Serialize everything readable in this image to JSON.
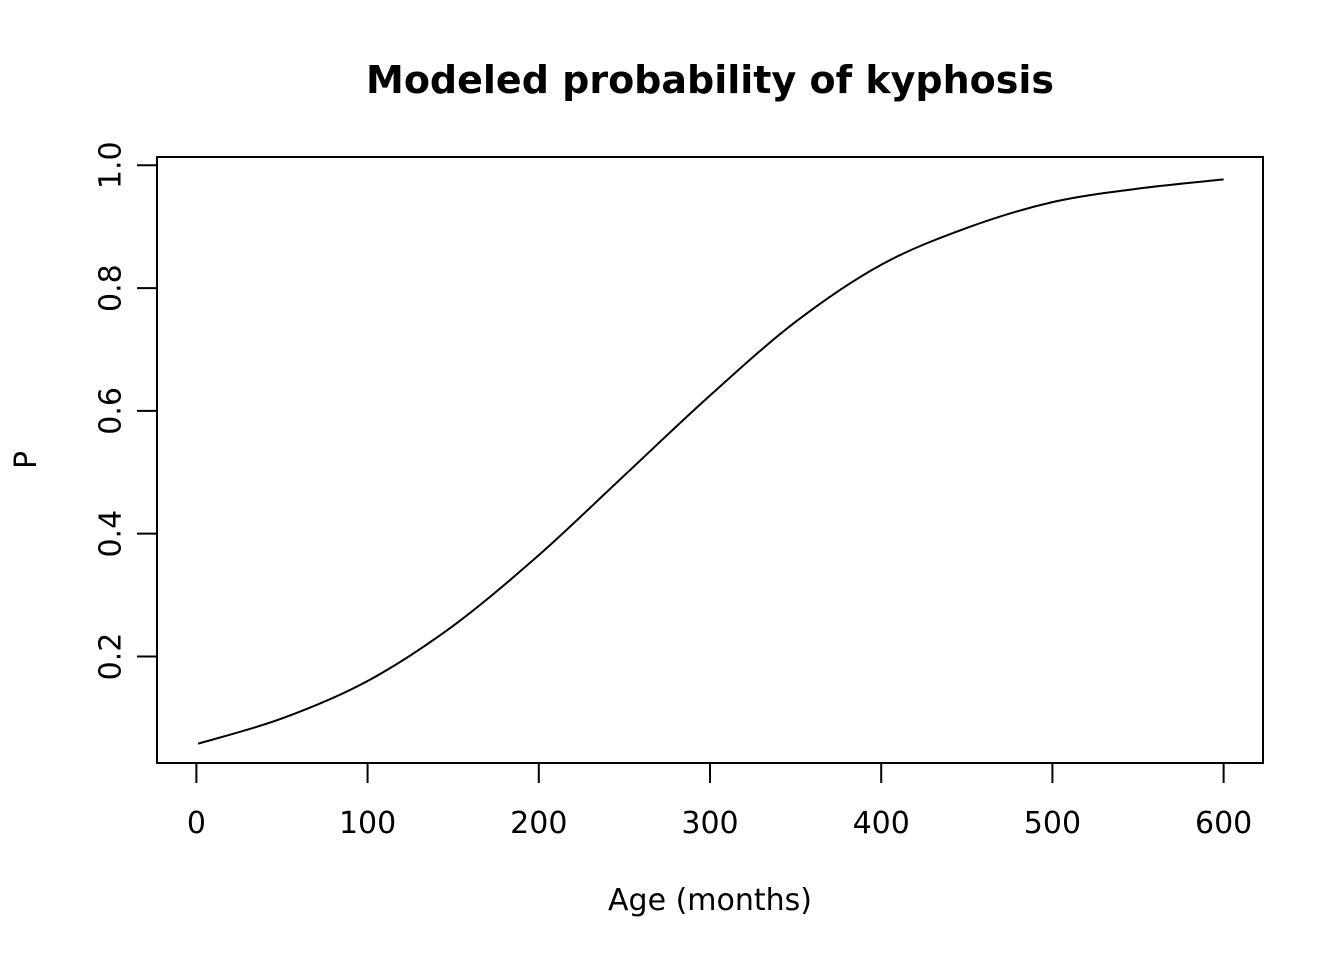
{
  "chart_data": {
    "type": "line",
    "title": "Modeled probability of kyphosis",
    "xlabel": "Age (months)",
    "ylabel": "P",
    "xlim": [
      -23,
      623
    ],
    "ylim": [
      0.0265,
      1.0135
    ],
    "x_ticks": [
      0,
      100,
      200,
      300,
      400,
      500,
      600
    ],
    "x_tick_labels": [
      "0",
      "100",
      "200",
      "300",
      "400",
      "500",
      "600"
    ],
    "y_ticks": [
      0.2,
      0.4,
      0.6,
      0.8,
      1.0
    ],
    "y_tick_labels": [
      "0.2",
      "0.4",
      "0.6",
      "0.8",
      "1.0"
    ],
    "grid": false,
    "legend": "none",
    "series": [
      {
        "x": [
          1,
          50,
          100,
          150,
          200,
          250,
          300,
          350,
          400,
          450,
          500,
          550,
          600
        ],
        "y": [
          0.058,
          0.099,
          0.16,
          0.25,
          0.365,
          0.495,
          0.625,
          0.745,
          0.838,
          0.898,
          0.94,
          0.962,
          0.977
        ]
      }
    ],
    "colors": {
      "line": "#000000",
      "axes": "#000000",
      "background": "#ffffff"
    }
  }
}
